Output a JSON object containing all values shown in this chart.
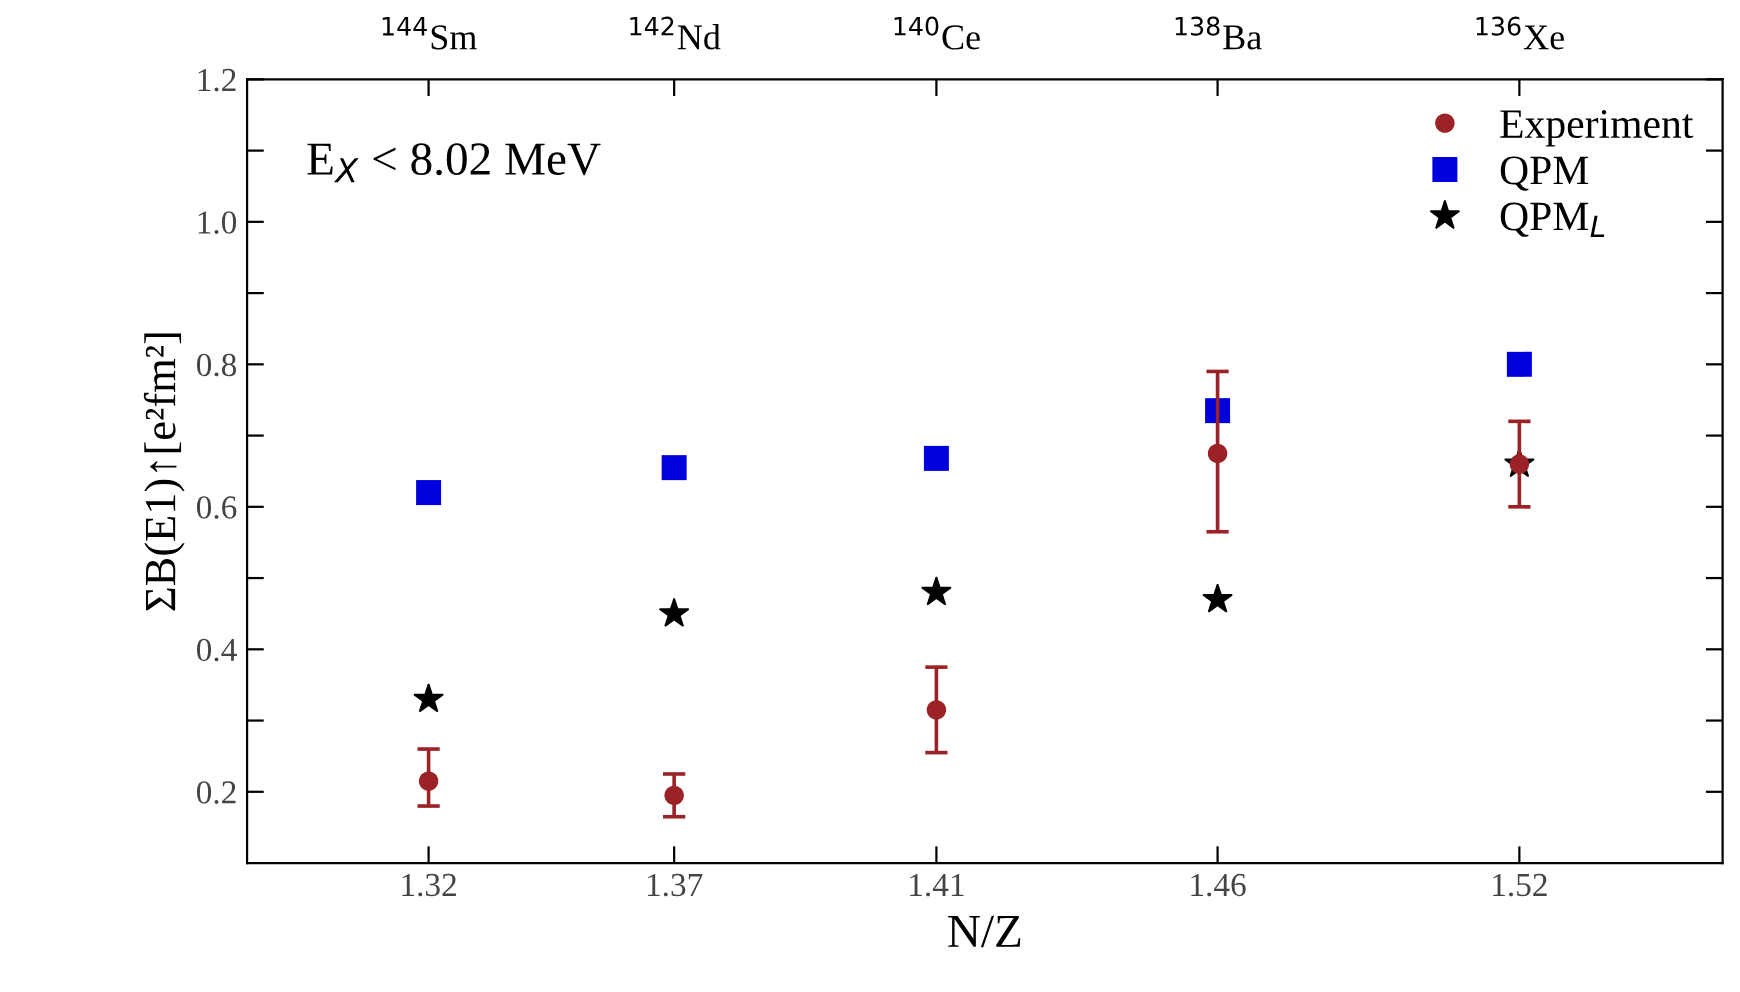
{
  "chart_data": {
    "type": "scatter",
    "xlabel": "N/Z",
    "ylabel": "ΣB(E1)↑[e²fm²]",
    "x": [
      1.3226,
      1.3667,
      1.4138,
      1.4643,
      1.5185
    ],
    "series": [
      {
        "name": "Experiment",
        "color": "#9b2226",
        "marker": "circle",
        "values": [
          0.215,
          0.195,
          0.315,
          0.675,
          0.66
        ],
        "errors": [
          [
            0.18,
            0.26
          ],
          [
            0.165,
            0.225
          ],
          [
            0.255,
            0.375
          ],
          [
            0.565,
            0.79
          ],
          [
            0.6,
            0.72
          ]
        ]
      },
      {
        "name": "QPM",
        "color": "#0000dd",
        "marker": "square",
        "values": [
          0.62,
          0.655,
          0.668,
          0.735,
          0.8
        ]
      },
      {
        "name": "QPM$_{L}$",
        "color": "#000000",
        "marker": "star",
        "values": [
          0.33,
          0.45,
          0.48,
          0.47,
          0.66
        ]
      }
    ],
    "xlim": [
      1.29,
      1.555
    ],
    "ylim": [
      0.1,
      1.2
    ],
    "xticks": [
      {
        "value": 1.3226,
        "label": "1.32"
      },
      {
        "value": 1.3667,
        "label": "1.37"
      },
      {
        "value": 1.4138,
        "label": "1.41"
      },
      {
        "value": 1.4643,
        "label": "1.46"
      },
      {
        "value": 1.5185,
        "label": "1.52"
      }
    ],
    "yticks": [
      {
        "value": 0.2,
        "label": "0.2"
      },
      {
        "value": 0.3,
        "label": null
      },
      {
        "value": 0.4,
        "label": "0.4"
      },
      {
        "value": 0.5,
        "label": null
      },
      {
        "value": 0.6,
        "label": "0.6"
      },
      {
        "value": 0.7,
        "label": null
      },
      {
        "value": 0.8,
        "label": "0.8"
      },
      {
        "value": 0.9,
        "label": null
      },
      {
        "value": 1.0,
        "label": "1.0"
      },
      {
        "value": 1.1,
        "label": null
      },
      {
        "value": 1.2,
        "label": "1.2"
      }
    ],
    "annotations": [
      "E$_{X}$ < 8.02 MeV",
      "$^{144}$Sm",
      "$^{142}$Nd",
      "$^{140}$Ce",
      "$^{138}$Ba",
      "$^{136}$Xe"
    ],
    "legend": "top right",
    "grid": false
  }
}
